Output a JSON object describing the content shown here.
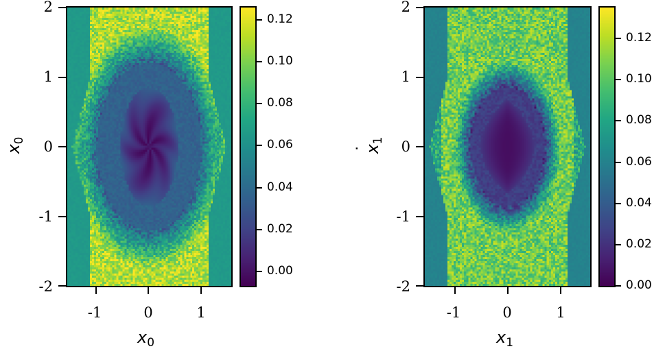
{
  "chart_data": [
    {
      "type": "heatmap",
      "title": "",
      "xlabel": "x_0",
      "ylabel": "ẋ_0",
      "xlim": [
        -1.57,
        1.57
      ],
      "ylim": [
        -2,
        2
      ],
      "xticks": [
        -1,
        0,
        1
      ],
      "yticks": [
        -2,
        -1,
        0,
        1,
        2
      ],
      "xtick_labels": [
        "-1",
        "0",
        "1"
      ],
      "ytick_labels": [
        "-2",
        "-1",
        "0",
        "1",
        "2"
      ],
      "colormap": "viridis",
      "colorbar": {
        "range": [
          -0.007,
          0.126
        ],
        "ticks": [
          0.0,
          0.02,
          0.04,
          0.06,
          0.08,
          0.1,
          0.12
        ],
        "tick_labels": [
          "0.00",
          "0.02",
          "0.04",
          "0.06",
          "0.08",
          "0.10",
          "0.12"
        ]
      },
      "description": "Phase-space density: dark (~0.00) core near origin, blue (~0.03) elliptical region radius ~0.8 in x and ~1.1 in xdot, bright yellow-green (~0.11) noisy hexagonal ring reaching edges, teal (~0.065) at corners.",
      "structure": {
        "core_value": 0.0,
        "core_rx": 0.55,
        "core_ry": 0.85,
        "mid_value": 0.035,
        "mid_rx": 1.0,
        "mid_ry": 1.2,
        "ring_value": 0.11,
        "outer_value": 0.065,
        "noise": 0.018,
        "swirl": true
      }
    },
    {
      "type": "heatmap",
      "title": "",
      "xlabel": "x_1",
      "ylabel": "ẋ_1",
      "xlim": [
        -1.57,
        1.57
      ],
      "ylim": [
        -2,
        2
      ],
      "xticks": [
        -1,
        0,
        1
      ],
      "yticks": [
        -2,
        -1,
        0,
        1,
        2
      ],
      "xtick_labels": [
        "-1",
        "0",
        "1"
      ],
      "ytick_labels": [
        "-2",
        "-1",
        "0",
        "1",
        "2"
      ],
      "colormap": "viridis",
      "colorbar": {
        "range": [
          0.0,
          0.135
        ],
        "ticks": [
          0.0,
          0.02,
          0.04,
          0.06,
          0.08,
          0.1,
          0.12
        ],
        "tick_labels": [
          "0.00",
          "0.02",
          "0.04",
          "0.06",
          "0.08",
          "0.10",
          "0.12"
        ]
      },
      "description": "Phase-space density: sharp-edged dark lens-shaped core (~0.005-0.02) spanning x in [-0.65,0.65], xdot in [-0.8,0.8], surrounded by bright green-yellow (~0.10) noisy region, teal (~0.06) at corners.",
      "structure": {
        "core_value": 0.005,
        "core_rx": 0.5,
        "core_ry": 0.65,
        "mid_value": 0.025,
        "mid_rx": 0.7,
        "mid_ry": 0.85,
        "ring_value": 0.105,
        "outer_value": 0.06,
        "noise": 0.02,
        "swirl": false
      }
    }
  ],
  "plots": [
    {
      "xlabel_sym": "x",
      "xlabel_sub": "0",
      "ylabel_sym": "x",
      "ylabel_sub": "0"
    },
    {
      "xlabel_sym": "x",
      "xlabel_sub": "1",
      "ylabel_sym": "x",
      "ylabel_sub": "1"
    }
  ]
}
